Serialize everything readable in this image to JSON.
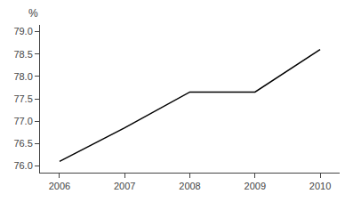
{
  "chart_data": {
    "type": "line",
    "ylabel": "%",
    "x": [
      2006,
      2007,
      2008,
      2008.7,
      2009,
      2010
    ],
    "values": [
      76.1,
      76.85,
      77.65,
      77.65,
      77.65,
      78.6
    ],
    "color": "#000000",
    "xlim": [
      2005.7,
      2010.3
    ],
    "ylim": [
      75.85,
      79.15
    ],
    "xticks": [
      2006,
      2007,
      2008,
      2009,
      2010
    ],
    "yticks": [
      {
        "value": 76.0,
        "label": "76.0"
      },
      76.5,
      {
        "value": 77.0,
        "label": "77.0"
      },
      77.5,
      {
        "value": 78.0,
        "label": "78.0"
      },
      78.5,
      {
        "value": 79.0,
        "label": "79.0"
      }
    ],
    "grid": false
  }
}
